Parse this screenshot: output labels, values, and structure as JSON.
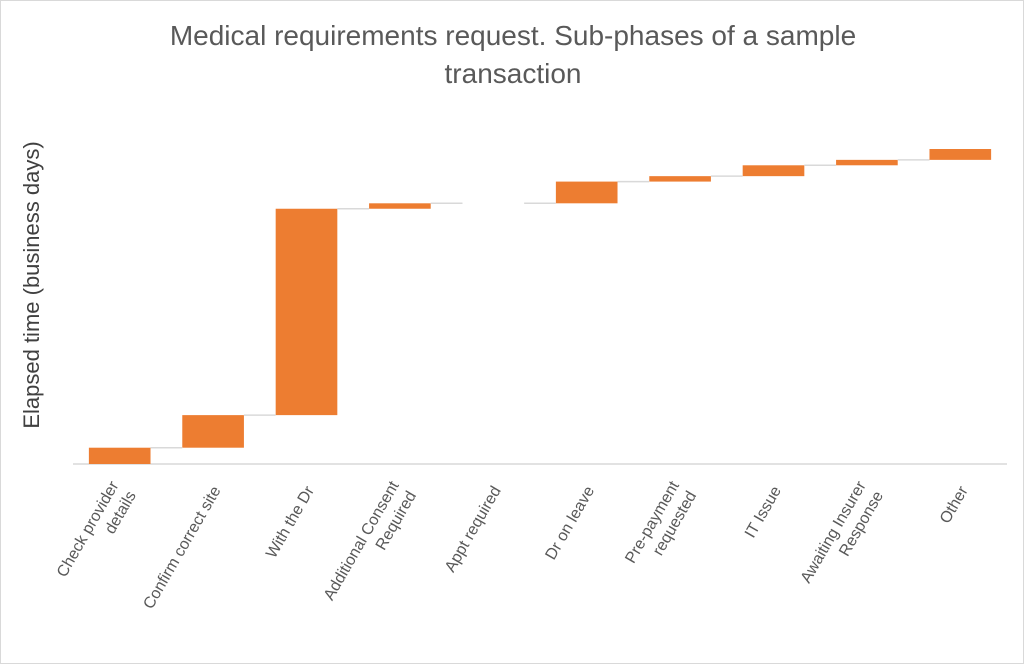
{
  "chart_data": {
    "type": "bar",
    "subtype": "waterfall",
    "title_lines": [
      "Medical requirements request.  Sub-phases of a sample",
      "transaction"
    ],
    "xlabel": "",
    "ylabel": "Elapsed time (business days)",
    "categories": [
      "Check provider details",
      "Confirm correct site",
      "With the Dr",
      "Additional Consent Required",
      "Appt required",
      "Dr on leave",
      "Pre-payment requested",
      "IT Issue",
      "Awaiting Insurer Response",
      "Other"
    ],
    "category_lines": [
      [
        "Check provider",
        "details"
      ],
      [
        "Confirm correct site"
      ],
      [
        "With the Dr"
      ],
      [
        "Additional Consent",
        "Required"
      ],
      [
        "Appt required"
      ],
      [
        "Dr on leave"
      ],
      [
        "Pre-payment",
        "requested"
      ],
      [
        "IT Issue"
      ],
      [
        "Awaiting Insurer",
        "Response"
      ],
      [
        "Other"
      ]
    ],
    "values": [
      3,
      6,
      38,
      1,
      0,
      4,
      1,
      2,
      1,
      2
    ],
    "ylim": [
      0,
      58
    ],
    "y_tick_labels_shown": false,
    "grid": false,
    "legend": "none",
    "connector_lines": true
  },
  "colors": {
    "bar": "#ED7D31",
    "connector": "#D9D9D9",
    "axis": "#D9D9D9",
    "title": "#595959",
    "text": "#404040"
  }
}
